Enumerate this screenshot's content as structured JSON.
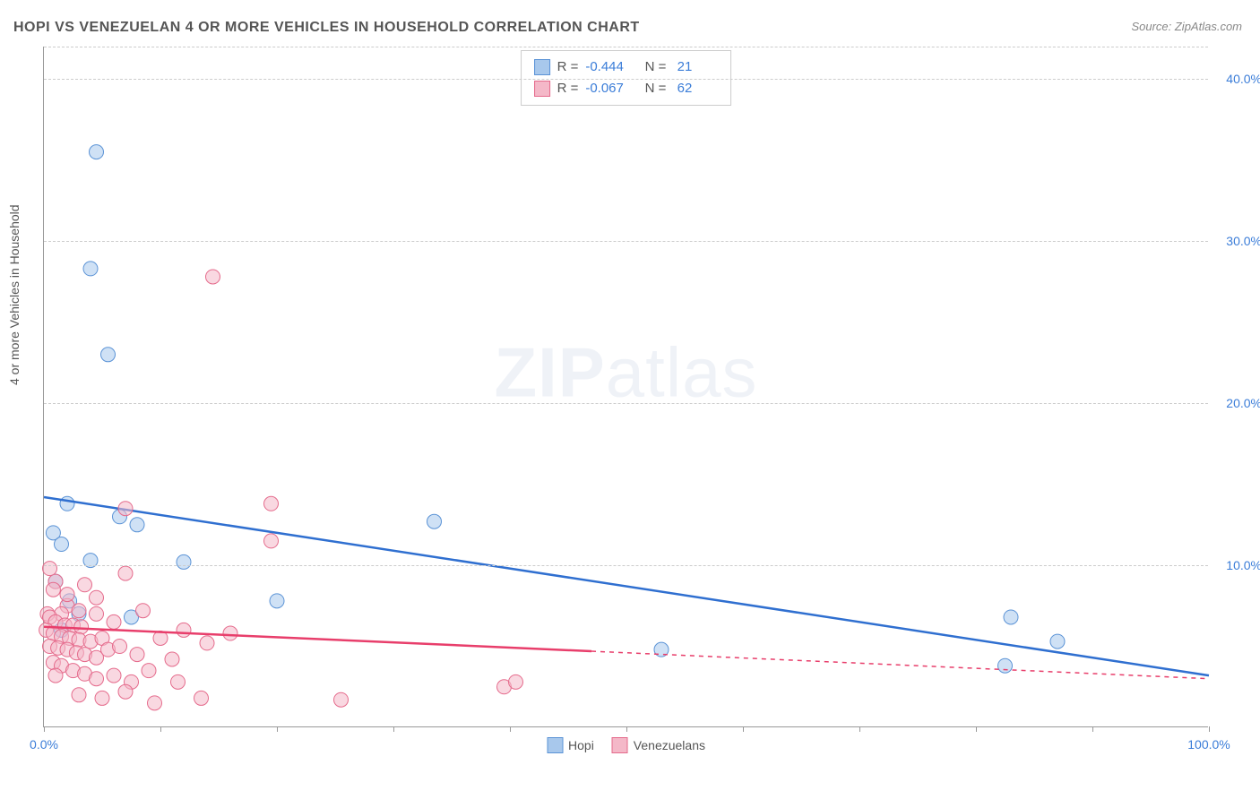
{
  "title": "HOPI VS VENEZUELAN 4 OR MORE VEHICLES IN HOUSEHOLD CORRELATION CHART",
  "source": "Source: ZipAtlas.com",
  "y_axis_label": "4 or more Vehicles in Household",
  "watermark_bold": "ZIP",
  "watermark_light": "atlas",
  "chart": {
    "type": "scatter",
    "xlim": [
      0,
      100
    ],
    "ylim": [
      0,
      42
    ],
    "x_ticks": [
      0,
      10,
      20,
      30,
      40,
      50,
      60,
      70,
      80,
      90,
      100
    ],
    "x_tick_labels_visible": {
      "0": "0.0%",
      "100": "100.0%"
    },
    "y_gridlines": [
      10,
      20,
      30,
      40
    ],
    "y_tick_labels": {
      "10": "10.0%",
      "20": "20.0%",
      "30": "30.0%",
      "40": "40.0%"
    },
    "y_tick_color": "#3b7dd8",
    "x_tick_color": "#3b7dd8",
    "background_color": "#ffffff",
    "grid_color": "#cccccc",
    "axis_color": "#999999",
    "marker_radius": 8,
    "series": [
      {
        "name": "Hopi",
        "fill": "#a8c8ec",
        "stroke": "#5b93d6",
        "fill_opacity": 0.55,
        "line_color": "#2f6fd0",
        "line_width": 2.5,
        "R": "-0.444",
        "N": "21",
        "regression": {
          "x1": 0,
          "y1": 14.2,
          "x2": 100,
          "y2": 3.2,
          "solid_to_x": 100
        },
        "points": [
          [
            4.5,
            35.5
          ],
          [
            4.0,
            28.3
          ],
          [
            5.5,
            23.0
          ],
          [
            2.0,
            13.8
          ],
          [
            0.8,
            12.0
          ],
          [
            1.5,
            11.3
          ],
          [
            6.5,
            13.0
          ],
          [
            8.0,
            12.5
          ],
          [
            4.0,
            10.3
          ],
          [
            12.0,
            10.2
          ],
          [
            1.0,
            9.0
          ],
          [
            2.2,
            7.8
          ],
          [
            3.0,
            7.0
          ],
          [
            7.5,
            6.8
          ],
          [
            20.0,
            7.8
          ],
          [
            33.5,
            12.7
          ],
          [
            53.0,
            4.8
          ],
          [
            83.0,
            6.8
          ],
          [
            87.0,
            5.3
          ],
          [
            82.5,
            3.8
          ],
          [
            1.5,
            6.0
          ]
        ]
      },
      {
        "name": "Venezuelans",
        "fill": "#f4b8c8",
        "stroke": "#e56b8c",
        "fill_opacity": 0.55,
        "line_color": "#e83e6b",
        "line_width": 2.5,
        "R": "-0.067",
        "N": "62",
        "regression": {
          "x1": 0,
          "y1": 6.2,
          "x2": 100,
          "y2": 3.0,
          "solid_to_x": 47
        },
        "points": [
          [
            14.5,
            27.8
          ],
          [
            7.0,
            13.5
          ],
          [
            19.5,
            13.8
          ],
          [
            19.5,
            11.5
          ],
          [
            1.0,
            9.0
          ],
          [
            0.5,
            9.8
          ],
          [
            0.8,
            8.5
          ],
          [
            3.5,
            8.8
          ],
          [
            7.0,
            9.5
          ],
          [
            4.5,
            8.0
          ],
          [
            2.0,
            7.5
          ],
          [
            3.0,
            7.2
          ],
          [
            1.5,
            7.0
          ],
          [
            0.3,
            7.0
          ],
          [
            0.5,
            6.8
          ],
          [
            1.0,
            6.5
          ],
          [
            1.8,
            6.3
          ],
          [
            2.5,
            6.3
          ],
          [
            3.2,
            6.2
          ],
          [
            0.2,
            6.0
          ],
          [
            0.8,
            5.8
          ],
          [
            1.5,
            5.6
          ],
          [
            2.2,
            5.5
          ],
          [
            3.0,
            5.4
          ],
          [
            4.0,
            5.3
          ],
          [
            5.0,
            5.5
          ],
          [
            0.5,
            5.0
          ],
          [
            1.2,
            4.9
          ],
          [
            2.0,
            4.8
          ],
          [
            2.8,
            4.6
          ],
          [
            3.5,
            4.5
          ],
          [
            4.5,
            4.3
          ],
          [
            5.5,
            4.8
          ],
          [
            6.5,
            5.0
          ],
          [
            8.0,
            4.5
          ],
          [
            10.0,
            5.5
          ],
          [
            12.0,
            6.0
          ],
          [
            14.0,
            5.2
          ],
          [
            0.8,
            4.0
          ],
          [
            1.5,
            3.8
          ],
          [
            2.5,
            3.5
          ],
          [
            3.5,
            3.3
          ],
          [
            4.5,
            3.0
          ],
          [
            6.0,
            3.2
          ],
          [
            7.5,
            2.8
          ],
          [
            9.0,
            3.5
          ],
          [
            3.0,
            2.0
          ],
          [
            5.0,
            1.8
          ],
          [
            7.0,
            2.2
          ],
          [
            9.5,
            1.5
          ],
          [
            11.5,
            2.8
          ],
          [
            13.5,
            1.8
          ],
          [
            16.0,
            5.8
          ],
          [
            25.5,
            1.7
          ],
          [
            39.5,
            2.5
          ],
          [
            40.5,
            2.8
          ],
          [
            2.0,
            8.2
          ],
          [
            4.5,
            7.0
          ],
          [
            6.0,
            6.5
          ],
          [
            8.5,
            7.2
          ],
          [
            11.0,
            4.2
          ],
          [
            1.0,
            3.2
          ]
        ]
      }
    ],
    "bottom_legend": [
      {
        "label": "Hopi",
        "fill": "#a8c8ec",
        "stroke": "#5b93d6"
      },
      {
        "label": "Venezuelans",
        "fill": "#f4b8c8",
        "stroke": "#e56b8c"
      }
    ]
  }
}
